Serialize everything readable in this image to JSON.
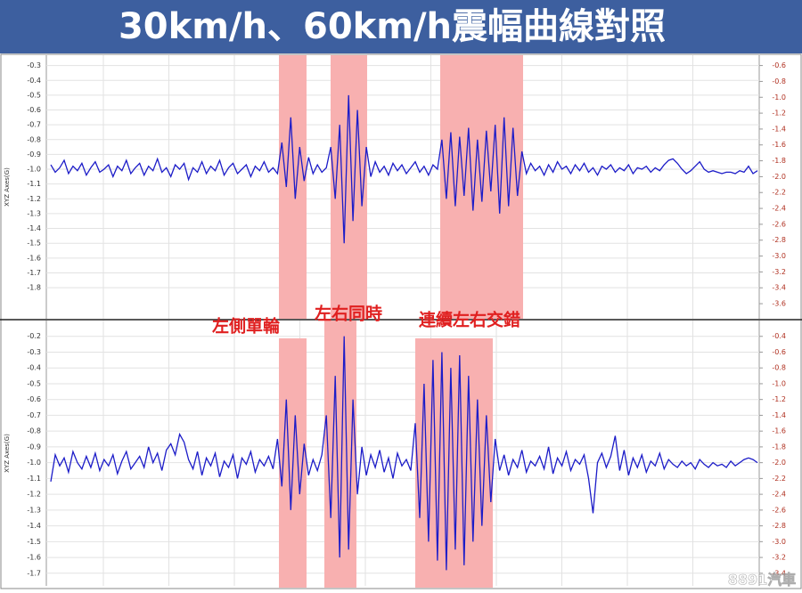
{
  "title": "30km/h、60km/h震幅曲線對照",
  "annotations": [
    "左側單輪",
    "左右同時",
    "連續左右交錯"
  ],
  "watermark": "8891汽車",
  "chart_data": [
    {
      "type": "line",
      "ylabel": "XYZ Axes(G)",
      "color": "#1c1cc8",
      "ylim": [
        -2.01,
        -0.23
      ],
      "y2lim": [
        -3.79,
        -0.47
      ],
      "yticks": [
        -0.3,
        -0.4,
        -0.5,
        -0.6,
        -0.7,
        -0.8,
        -0.9,
        {
          "value": -1,
          "label": "-1.0"
        },
        -1.1,
        -1.2,
        -1.3,
        -1.4,
        -1.5,
        -1.6,
        -1.7,
        -1.8
      ],
      "y2ticks": [
        -0.6,
        -0.8,
        {
          "value": -1,
          "label": "-1.0"
        },
        -1.2,
        -1.4,
        -1.6,
        -1.8,
        {
          "value": -2,
          "label": "-2.0"
        },
        -2.2,
        -2.4,
        -2.6,
        -2.8,
        {
          "value": -3,
          "label": "-3.0"
        },
        -3.2,
        -3.4,
        -3.6
      ],
      "values": [
        -0.97,
        -1.02,
        -0.99,
        -0.94,
        -1.03,
        -0.98,
        -1.01,
        -0.96,
        -1.04,
        -0.99,
        -0.95,
        -1.02,
        -1.0,
        -0.97,
        -1.05,
        -0.98,
        -1.01,
        -0.94,
        -1.03,
        -0.99,
        -0.96,
        -1.04,
        -0.98,
        -1.01,
        -0.93,
        -1.02,
        -0.99,
        -1.05,
        -0.97,
        -1.0,
        -0.96,
        -1.07,
        -0.99,
        -1.02,
        -0.95,
        -1.03,
        -0.98,
        -1.01,
        -0.94,
        -1.04,
        -0.99,
        -0.96,
        -1.03,
        -1.0,
        -0.97,
        -1.05,
        -0.98,
        -1.01,
        -0.95,
        -1.02,
        -0.99,
        -1.03,
        -0.82,
        -1.12,
        -0.65,
        -1.2,
        -0.85,
        -1.08,
        -0.92,
        -1.03,
        -0.97,
        -1.02,
        -0.99,
        -0.85,
        -1.2,
        -0.7,
        -1.5,
        -0.5,
        -1.35,
        -0.6,
        -1.25,
        -0.85,
        -1.05,
        -0.95,
        -1.02,
        -0.98,
        -1.04,
        -0.96,
        -1.01,
        -0.97,
        -1.03,
        -0.99,
        -0.95,
        -1.02,
        -0.98,
        -1.04,
        -0.97,
        -1.0,
        -0.8,
        -1.2,
        -0.75,
        -1.25,
        -0.78,
        -1.18,
        -0.72,
        -1.28,
        -0.8,
        -1.22,
        -0.74,
        -1.15,
        -0.7,
        -1.3,
        -0.65,
        -1.25,
        -0.72,
        -1.18,
        -0.88,
        -1.03,
        -0.96,
        -1.01,
        -0.98,
        -1.04,
        -0.97,
        -1.02,
        -0.95,
        -1.0,
        -0.98,
        -1.03,
        -0.97,
        -1.01,
        -0.96,
        -1.02,
        -0.99,
        -1.04,
        -0.98,
        -1.0,
        -0.97,
        -1.02,
        -0.99,
        -1.01,
        -0.97,
        -1.03,
        -0.99,
        -1.0,
        -0.98,
        -1.02,
        -0.99,
        -1.01,
        -0.97,
        -0.94,
        -0.93,
        -0.96,
        -1.0,
        -1.03,
        -1.01,
        -0.98,
        -0.95,
        -1.0,
        -1.02,
        -1.01,
        -1.02,
        -1.03,
        -1.02,
        -1.02,
        -1.03,
        -1.01,
        -1.02,
        -0.98,
        -1.03,
        -1.01
      ]
    },
    {
      "type": "line",
      "ylabel": "XYZ Axes(G)",
      "color": "#1c1cc8",
      "ylim": [
        -1.78,
        -0.1
      ],
      "y2lim": [
        -3.56,
        -0.2
      ],
      "yticks": [
        -0.2,
        -0.3,
        -0.4,
        -0.5,
        -0.6,
        -0.7,
        -0.8,
        -0.9,
        {
          "value": -1,
          "label": "-1.0"
        },
        -1.1,
        -1.2,
        -1.3,
        -1.4,
        -1.5,
        -1.6,
        -1.7
      ],
      "y2ticks": [
        -0.4,
        -0.6,
        -0.8,
        {
          "value": -1,
          "label": "-1.0"
        },
        -1.2,
        -1.4,
        -1.6,
        -1.8,
        {
          "value": -2,
          "label": "-2.0"
        },
        -2.2,
        -2.4,
        -2.6,
        -2.8,
        {
          "value": -3,
          "label": "-3.0"
        },
        -3.2,
        -3.4
      ],
      "values": [
        -1.12,
        -0.95,
        -1.02,
        -0.97,
        -1.06,
        -0.93,
        -1.0,
        -1.04,
        -0.96,
        -1.03,
        -0.94,
        -1.05,
        -0.98,
        -1.02,
        -0.95,
        -1.07,
        -0.99,
        -0.93,
        -1.04,
        -1.0,
        -0.96,
        -1.03,
        -0.9,
        -1.0,
        -0.94,
        -1.05,
        -0.92,
        -0.88,
        -0.95,
        -0.82,
        -0.87,
        -0.98,
        -1.04,
        -0.93,
        -1.08,
        -0.97,
        -1.02,
        -0.94,
        -1.09,
        -0.99,
        -1.03,
        -0.95,
        -1.1,
        -0.97,
        -1.01,
        -0.93,
        -1.06,
        -0.98,
        -1.02,
        -0.96,
        -1.04,
        -0.85,
        -1.15,
        -0.6,
        -1.3,
        -0.7,
        -1.2,
        -0.88,
        -1.08,
        -0.98,
        -1.05,
        -0.95,
        -0.7,
        -1.35,
        -0.45,
        -1.6,
        -0.2,
        -1.55,
        -0.6,
        -1.2,
        -0.9,
        -1.08,
        -0.95,
        -1.03,
        -0.92,
        -1.06,
        -0.97,
        -1.1,
        -0.94,
        -1.02,
        -0.98,
        -1.05,
        -0.75,
        -1.35,
        -0.5,
        -1.5,
        -0.35,
        -1.62,
        -0.3,
        -1.68,
        -0.4,
        -1.55,
        -0.32,
        -1.65,
        -0.45,
        -1.5,
        -0.6,
        -1.4,
        -0.7,
        -1.25,
        -0.85,
        -1.05,
        -0.95,
        -1.08,
        -0.98,
        -1.03,
        -0.92,
        -1.06,
        -0.99,
        -1.02,
        -0.96,
        -1.04,
        -0.9,
        -1.07,
        -0.97,
        -1.02,
        -0.93,
        -1.05,
        -0.98,
        -1.01,
        -0.95,
        -1.1,
        -1.32,
        -1.0,
        -0.94,
        -1.03,
        -0.96,
        -0.83,
        -1.05,
        -0.92,
        -1.08,
        -0.97,
        -1.03,
        -0.95,
        -1.06,
        -0.99,
        -1.02,
        -0.94,
        -1.04,
        -0.98,
        -1.01,
        -1.03,
        -0.99,
        -1.02,
        -1.0,
        -1.04,
        -0.98,
        -1.01,
        -1.03,
        -1.0,
        -1.02,
        -1.01,
        -1.03,
        -0.99,
        -1.02,
        -1.0,
        -0.98,
        -0.97,
        -0.98,
        -1.0
      ]
    }
  ]
}
